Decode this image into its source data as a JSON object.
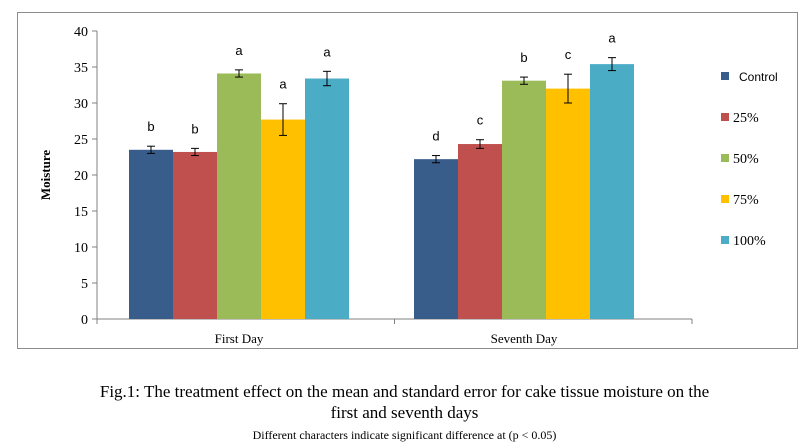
{
  "chart_data": {
    "type": "bar",
    "categories": [
      "First Day",
      "Seventh Day"
    ],
    "ylabel": "Moisture",
    "xlabel": "",
    "ylim": [
      0,
      40
    ],
    "yticks": [
      0,
      5,
      10,
      15,
      20,
      25,
      30,
      35,
      40
    ],
    "grid": false,
    "legend_position": "right",
    "series": [
      {
        "name": "Control",
        "color": "#385d8a",
        "values": [
          23.5,
          22.2
        ],
        "errors": [
          0.5,
          0.5
        ],
        "letters": [
          "b",
          "d"
        ]
      },
      {
        "name": "25%",
        "color": "#c0504d",
        "values": [
          23.2,
          24.3
        ],
        "errors": [
          0.5,
          0.6
        ],
        "letters": [
          "b",
          "c"
        ]
      },
      {
        "name": "50%",
        "color": "#9bbb59",
        "values": [
          34.1,
          33.1
        ],
        "errors": [
          0.5,
          0.5
        ],
        "letters": [
          "a",
          "b"
        ]
      },
      {
        "name": "75%",
        "color": "#ffc000",
        "values": [
          27.7,
          32.0
        ],
        "errors": [
          2.2,
          2.0
        ],
        "letters": [
          "a",
          "c"
        ]
      },
      {
        "name": "100%",
        "color": "#4bacc6",
        "values": [
          33.4,
          35.4
        ],
        "errors": [
          1.0,
          0.9
        ],
        "letters": [
          "a",
          "a"
        ]
      }
    ]
  },
  "caption": {
    "title_line1": "Fig.1: The treatment effect on the mean and standard error for cake tissue moisture on the",
    "title_line2": "first and seventh days",
    "note": "Different  characters indicate  significant  difference  at (p < 0.05)"
  }
}
